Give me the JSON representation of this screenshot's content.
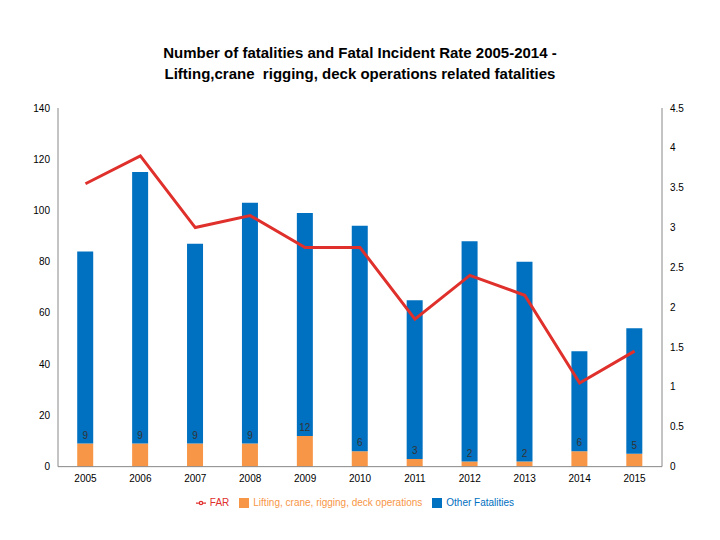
{
  "chart_data": {
    "type": "bar",
    "title": "Number of fatalities and Fatal Incident Rate 2005-2014 -\nLifting,crane  rigging, deck operations related fatalities",
    "categories": [
      "2005",
      "2006",
      "2007",
      "2008",
      "2009",
      "2010",
      "2011",
      "2012",
      "2013",
      "2014",
      "2015"
    ],
    "stacked": true,
    "grid": false,
    "legend": "bottom",
    "series": [
      {
        "name": "Lifting, crane, rigging, deck operations",
        "type": "bar",
        "color": "#f79646",
        "data_labels": true,
        "values": [
          9,
          9,
          9,
          9,
          12,
          6,
          3,
          2,
          2,
          6,
          5
        ]
      },
      {
        "name": "Other Fatalities",
        "type": "bar",
        "color": "#0070c0",
        "values": [
          75,
          106,
          78,
          94,
          87,
          88,
          62,
          86,
          78,
          39,
          49
        ]
      },
      {
        "name": "FAR",
        "type": "line",
        "color": "#e0302c",
        "axis": "y2",
        "values": [
          3.55,
          3.9,
          3.0,
          3.15,
          2.75,
          2.75,
          1.85,
          2.4,
          2.15,
          1.05,
          1.45
        ]
      }
    ],
    "ylim": [
      0,
      140
    ],
    "yticks": [
      0,
      20,
      40,
      60,
      80,
      100,
      120,
      140
    ],
    "y2lim": [
      0,
      4.5
    ],
    "y2ticks": [
      0,
      0.5,
      1,
      1.5,
      2,
      2.5,
      3,
      3.5,
      4,
      4.5
    ]
  }
}
